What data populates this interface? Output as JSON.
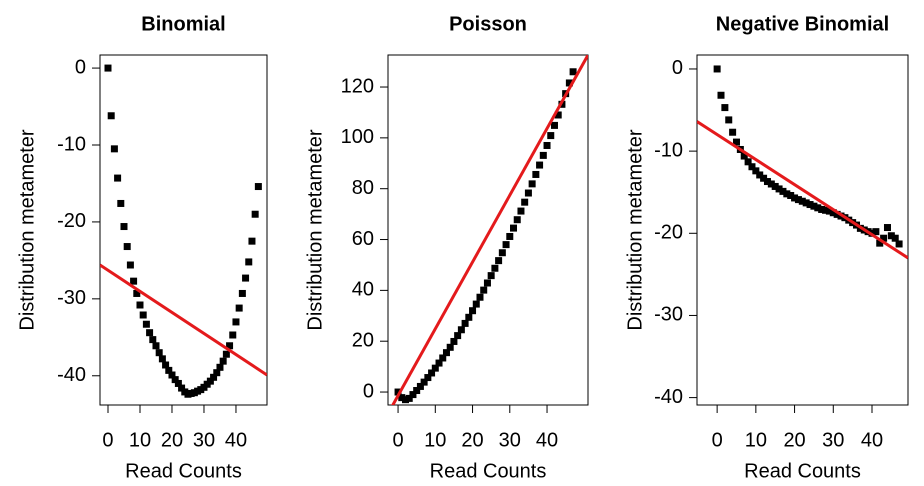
{
  "chart_data": [
    {
      "type": "scatter",
      "title": "Binomial",
      "x_label": "Read Counts",
      "y_label": "Distribution metameter",
      "xlim": [
        -2.5,
        49.7
      ],
      "ylim": [
        -43.8,
        1.7
      ],
      "xticks": [
        0,
        10,
        20,
        30,
        40
      ],
      "yticks": [
        0,
        -10,
        -20,
        -30,
        -40
      ],
      "points": {
        "color": "#000000",
        "x": [
          0,
          1,
          2,
          3,
          4,
          5,
          6,
          7,
          8,
          9,
          10,
          11,
          12,
          13,
          14,
          15,
          16,
          17,
          18,
          19,
          20,
          21,
          22,
          23,
          24,
          25,
          26,
          27,
          28,
          29,
          30,
          31,
          32,
          33,
          34,
          35,
          36,
          37,
          38,
          39,
          40,
          41,
          42,
          43,
          44,
          45,
          46,
          47
        ],
        "values": [
          0,
          -6.2,
          -10.5,
          -14.3,
          -17.6,
          -20.6,
          -23.2,
          -25.6,
          -27.7,
          -29.3,
          -30.8,
          -32.1,
          -33.3,
          -34.4,
          -35.3,
          -36.1,
          -37,
          -37.8,
          -38.6,
          -39.3,
          -39.9,
          -40.5,
          -41,
          -41.6,
          -42.1,
          -42.4,
          -42.3,
          -42.2,
          -42,
          -41.8,
          -41.5,
          -41.1,
          -40.7,
          -40.2,
          -39.6,
          -38.9,
          -38.1,
          -37.2,
          -36.1,
          -34.7,
          -33,
          -31.2,
          -29.3,
          -27.3,
          -25.2,
          -22.5,
          -19,
          -15.4
        ]
      },
      "fit": {
        "color": "#e41a1c",
        "x": [
          -2.5,
          49.7
        ],
        "values": [
          -25.6,
          -39.9
        ]
      }
    },
    {
      "type": "scatter",
      "title": "Poisson",
      "x_label": "Read Counts",
      "y_label": "Distribution metameter",
      "xlim": [
        -2.7,
        51
      ],
      "ylim": [
        -5.1,
        132.6
      ],
      "xticks": [
        0,
        10,
        20,
        30,
        40
      ],
      "yticks": [
        0,
        20,
        40,
        60,
        80,
        100,
        120
      ],
      "points": {
        "color": "#000000",
        "x": [
          0,
          1,
          2,
          3,
          4,
          5,
          6,
          7,
          8,
          9,
          10,
          11,
          12,
          13,
          14,
          15,
          16,
          17,
          18,
          19,
          20,
          21,
          22,
          23,
          24,
          25,
          26,
          27,
          28,
          29,
          30,
          31,
          32,
          33,
          34,
          35,
          36,
          37,
          38,
          39,
          40,
          41,
          42,
          43,
          44,
          45,
          46,
          47
        ],
        "values": [
          0,
          -2.2,
          -3,
          -2.5,
          -1,
          0.6,
          2.2,
          3.9,
          5.7,
          7.5,
          9.4,
          11.4,
          13.4,
          15.5,
          17.6,
          19.9,
          22.2,
          24.5,
          27,
          29.4,
          32,
          34.6,
          37.3,
          40.1,
          42.9,
          45.8,
          48.7,
          51.7,
          54.8,
          58,
          61.2,
          64.5,
          67.8,
          71.2,
          74.7,
          78.3,
          81.9,
          85.6,
          89.3,
          93.1,
          97,
          100.9,
          104.9,
          109,
          113.2,
          117.4,
          121.6,
          126
        ]
      },
      "fit": {
        "color": "#e41a1c",
        "x": [
          -2.7,
          51
        ],
        "values": [
          -8.5,
          132.6
        ]
      }
    },
    {
      "type": "scatter",
      "title": "Negative Binomial",
      "x_label": "Read Counts",
      "y_label": "Distribution metameter",
      "xlim": [
        -5.2,
        49.3
      ],
      "ylim": [
        -40.9,
        1.7
      ],
      "xticks": [
        0,
        10,
        20,
        30,
        40
      ],
      "yticks": [
        0,
        -10,
        -20,
        -30,
        -40
      ],
      "points": {
        "color": "#000000",
        "x": [
          0,
          1,
          2,
          3,
          4,
          5,
          6,
          7,
          8,
          9,
          10,
          11,
          12,
          13,
          14,
          15,
          16,
          17,
          18,
          19,
          20,
          21,
          22,
          23,
          24,
          25,
          26,
          27,
          28,
          29,
          30,
          31,
          32,
          33,
          34,
          35,
          36,
          37,
          38,
          39,
          40,
          41,
          42,
          43,
          44,
          45,
          46,
          47
        ],
        "values": [
          0,
          -3.2,
          -4.7,
          -6.2,
          -7.7,
          -8.9,
          -9.8,
          -10.6,
          -11.3,
          -11.9,
          -12.4,
          -12.9,
          -13.3,
          -13.7,
          -14,
          -14.3,
          -14.6,
          -14.9,
          -15.2,
          -15.4,
          -15.7,
          -15.9,
          -16.1,
          -16.3,
          -16.5,
          -16.7,
          -16.9,
          -17.1,
          -17.2,
          -17.3,
          -17.5,
          -17.7,
          -17.9,
          -18.1,
          -18.4,
          -18.7,
          -19,
          -19.4,
          -19.6,
          -19.8,
          -20,
          -19.8,
          -21.2,
          -20.6,
          -19.3,
          -20.3,
          -20.6,
          -21.3
        ]
      },
      "fit": {
        "color": "#e41a1c",
        "x": [
          -5.2,
          49.3
        ],
        "values": [
          -6.4,
          -23
        ]
      }
    }
  ]
}
